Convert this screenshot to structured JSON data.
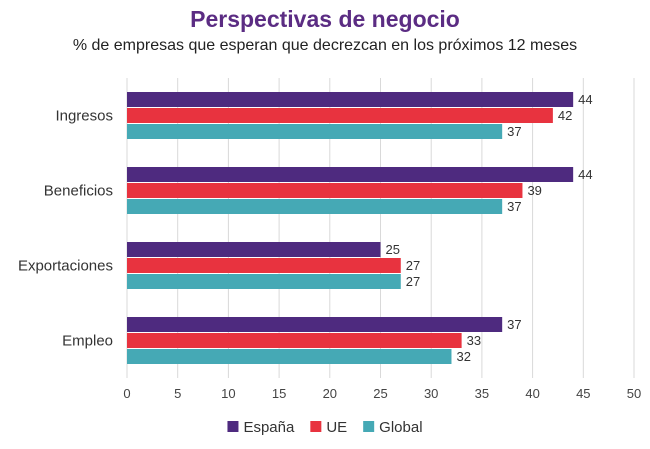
{
  "chart_data": {
    "type": "bar",
    "orientation": "horizontal",
    "title": "Perspectivas de negocio",
    "subtitle": "% de empresas que esperan que decrezcan en los próximos 12 meses",
    "categories": [
      "Ingresos",
      "Beneficios",
      "Exportaciones",
      "Empleo"
    ],
    "series": [
      {
        "name": "España",
        "color": "#4e2a7f",
        "values": [
          44,
          44,
          25,
          37
        ]
      },
      {
        "name": "UE",
        "color": "#e8333f",
        "values": [
          42,
          39,
          27,
          33
        ]
      },
      {
        "name": "Global",
        "color": "#45a9b5",
        "values": [
          37,
          37,
          27,
          32
        ]
      }
    ],
    "xlim": [
      0,
      50
    ],
    "xticks": [
      0,
      5,
      10,
      15,
      20,
      25,
      30,
      35,
      40,
      45,
      50
    ],
    "grid": true,
    "legend_position": "bottom"
  }
}
